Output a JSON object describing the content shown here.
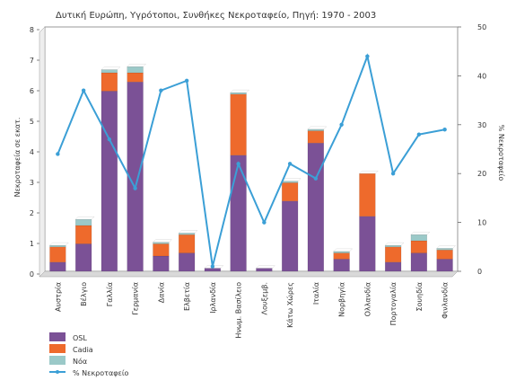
{
  "chart_data": {
    "type": "bar",
    "title": "Δυτική Ευρώπη, Υγρότοποι, Συνθήκες Νεκροταφείο, Πηγή: 1970 - 2003",
    "categories": [
      "Αυστρία",
      "Βέλγιο",
      "Γαλλία",
      "Γερμανία",
      "Δανία",
      "Ελβετία",
      "Ιρλανδία",
      "Ηνωμ. Βασίλειο",
      "Λουξεμβ.",
      "Κάτω Χώρες",
      "Ιταλία",
      "Νορβηγία",
      "Ολλανδία",
      "Πορτογαλία",
      "Σουηδία",
      "Φινλανδία"
    ],
    "stacked": true,
    "series": [
      {
        "name": "OSL",
        "color": "#7b5196",
        "values": [
          0.3,
          0.9,
          5.9,
          6.2,
          0.5,
          0.6,
          0.1,
          3.8,
          0.1,
          2.3,
          4.2,
          0.4,
          1.8,
          0.3,
          0.6,
          0.4
        ]
      },
      {
        "name": "Cadia",
        "color": "#ee6a2c",
        "values": [
          0.5,
          0.6,
          0.6,
          0.3,
          0.4,
          0.6,
          0.0,
          2.0,
          0.0,
          0.6,
          0.4,
          0.2,
          1.4,
          0.5,
          0.4,
          0.3
        ]
      },
      {
        "name": "Nόα",
        "color": "#9bc9c8",
        "values": [
          0.05,
          0.2,
          0.1,
          0.2,
          0.05,
          0.05,
          0.0,
          0.05,
          0.0,
          0.05,
          0.05,
          0.05,
          0.0,
          0.05,
          0.2,
          0.05
        ]
      }
    ],
    "line_series": {
      "name": "% Νεκροταφείο",
      "color": "#3b9fd6",
      "values": [
        24,
        37,
        27,
        17,
        37,
        39,
        1,
        22,
        10,
        22,
        19,
        30,
        44,
        20,
        28,
        29
      ]
    },
    "ylabel": "Νεκροταφεία σε εκατ.",
    "y2label": "% Νεκροταφείο",
    "ylim": [
      0,
      8
    ],
    "y2lim": [
      0,
      50
    ],
    "yticks": [
      "0",
      "1",
      "2",
      "3",
      "4",
      "5",
      "6",
      "7",
      "8"
    ],
    "y2ticks": [
      "0",
      "10",
      "20",
      "30",
      "40",
      "50"
    ],
    "legend": "bottom-left"
  }
}
